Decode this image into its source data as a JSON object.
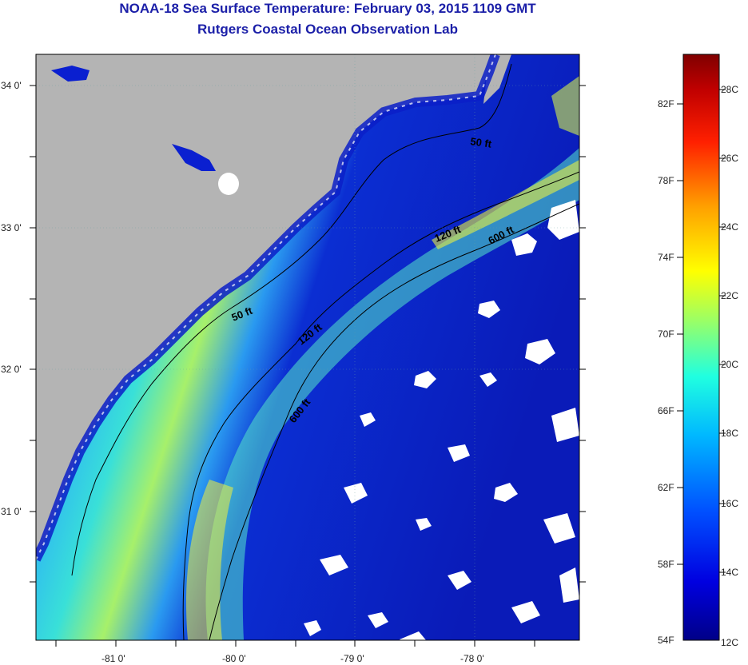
{
  "header": {
    "title": "NOAA-18 Sea Surface Temperature:  February 03, 2015 1109 GMT",
    "subtitle": "Rutgers Coastal Ocean Observation Lab"
  },
  "map": {
    "lat_labels": [
      "34 0'",
      "33 0'",
      "32 0'",
      "31 0'"
    ],
    "lon_labels": [
      "-81 0'",
      "-80 0'",
      "-79 0'",
      "-78 0'"
    ],
    "contour_labels": [
      "50 ft",
      "50 ft",
      "120 ft",
      "120 ft",
      "600 ft",
      "600 ft"
    ],
    "colors": {
      "land": "#b4b4b4",
      "cloud": "#ffffff",
      "frame": "#000000"
    }
  },
  "colorbar": {
    "fahrenheit_labels": [
      "82F",
      "78F",
      "74F",
      "70F",
      "66F",
      "62F",
      "58F",
      "54F"
    ],
    "celsius_labels": [
      "28C",
      "26C",
      "24C",
      "22C",
      "20C",
      "18C",
      "16C",
      "14C",
      "12C"
    ]
  }
}
